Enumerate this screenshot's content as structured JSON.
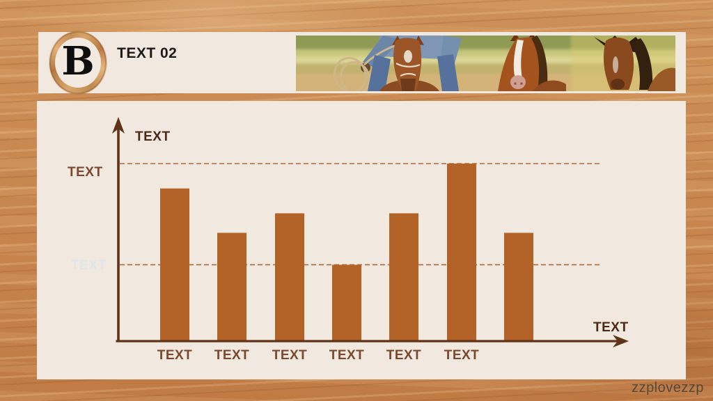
{
  "slide": {
    "logo_letter": "B",
    "header_title": "TEXT 02",
    "watermark": "zzplovezzp",
    "photo_description": "cowboy swinging lasso on horseback beside two running chestnut horses"
  },
  "chart_data": {
    "type": "bar",
    "title": "",
    "y_axis_title": "TEXT",
    "x_axis_title": "TEXT",
    "upper_gridline_label": "TEXT",
    "lower_gridline_label": "TEXT",
    "categories": [
      "TEXT",
      "TEXT",
      "TEXT",
      "TEXT",
      "TEXT",
      "TEXT",
      ""
    ],
    "values": [
      86,
      61,
      72,
      43,
      72,
      100,
      61
    ],
    "gridlines": [
      100,
      43
    ],
    "ylim": [
      0,
      122
    ],
    "grid_style": "dashed",
    "legend": "none",
    "bar_color": "#b36327",
    "axis_color": "#5e3318",
    "gridline_color": "#b06a33"
  }
}
